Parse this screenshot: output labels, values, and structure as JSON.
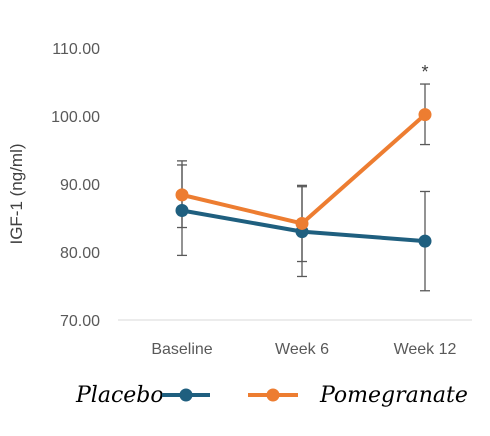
{
  "chart_data": {
    "type": "line",
    "ylabel": "IGF-1 (ng/ml)",
    "ylim": [
      70,
      110
    ],
    "yticks": [
      "70.00",
      "80.00",
      "90.00",
      "100.00",
      "110.00"
    ],
    "categories": [
      "Baseline",
      "Week 6",
      "Week 12"
    ],
    "grid": false,
    "legend_position": "bottom",
    "series": [
      {
        "name": "Placebo",
        "color": "#1f5f7f",
        "values": [
          86.1,
          83.0,
          81.6
        ],
        "error_low": [
          79.5,
          76.4,
          74.3
        ],
        "error_high": [
          92.8,
          89.6,
          88.9
        ]
      },
      {
        "name": "Pomegranate",
        "color": "#ed7d31",
        "values": [
          88.4,
          84.2,
          100.2
        ],
        "error_low": [
          83.6,
          78.6,
          95.8
        ],
        "error_high": [
          93.4,
          89.8,
          104.7
        ]
      }
    ],
    "annotations": [
      {
        "text": "*",
        "category": "Week 12",
        "series": "Pomegranate"
      }
    ]
  }
}
